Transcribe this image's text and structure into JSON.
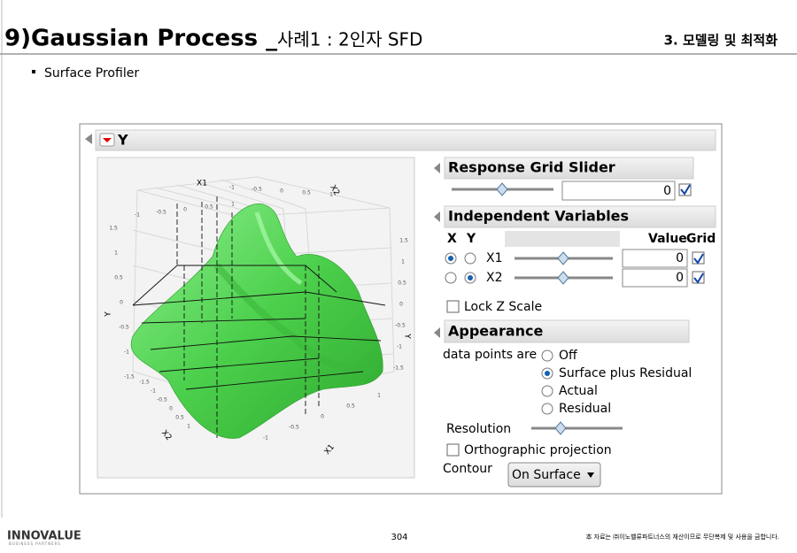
{
  "header": {
    "title": "9)Gaussian Process _",
    "subtitle": "사례1 : 2인자 SFD",
    "section": "3. 모델링 및 최적화"
  },
  "bullet": "Surface Profiler",
  "window": {
    "title": "Y",
    "plot": {
      "axis_labels": [
        "X1",
        "X2",
        "Y",
        "Y",
        "X2",
        "X1"
      ],
      "ticks": [
        "-1",
        "-0.5",
        "0",
        "0.5",
        "1",
        "-1",
        "-0.5",
        "0",
        "0.5",
        "1",
        "1.5",
        "1",
        "0.5",
        "0",
        "-0.5",
        "-1",
        "-1.5",
        "1.5",
        "1",
        "0.5",
        "0",
        "-0.5",
        "-1",
        "-1.5",
        "-1.5",
        "-1",
        "-0.5",
        "0",
        "0.5",
        "1",
        "-1",
        "-0.5",
        "0",
        "0.5",
        "1"
      ]
    },
    "response_grid_slider": {
      "title": "Response Grid Slider",
      "value": 0
    },
    "independent_variables": {
      "title": "Independent Variables",
      "headers": [
        "X",
        "Y",
        "Value",
        "Grid"
      ],
      "rows": [
        {
          "name": "X1",
          "value": 0
        },
        {
          "name": "X2",
          "value": 0
        }
      ]
    },
    "lock_z": "Lock Z Scale",
    "appearance": {
      "title": "Appearance",
      "label": "data points are",
      "options": [
        "Off",
        "Surface plus Residual",
        "Actual",
        "Residual"
      ],
      "resolution": "Resolution",
      "ortho": "Orthographic projection",
      "contour_label": "Contour",
      "contour_value": "On Surface"
    }
  },
  "footer": {
    "logo": "INNOVALUE",
    "logo_sub": "BUSINESS PARTNERS",
    "page": "304",
    "notice": "本 자료는 ㈜이노벨류파트너스의 재산이므로 무단복제 및 사용을 금합니다."
  }
}
